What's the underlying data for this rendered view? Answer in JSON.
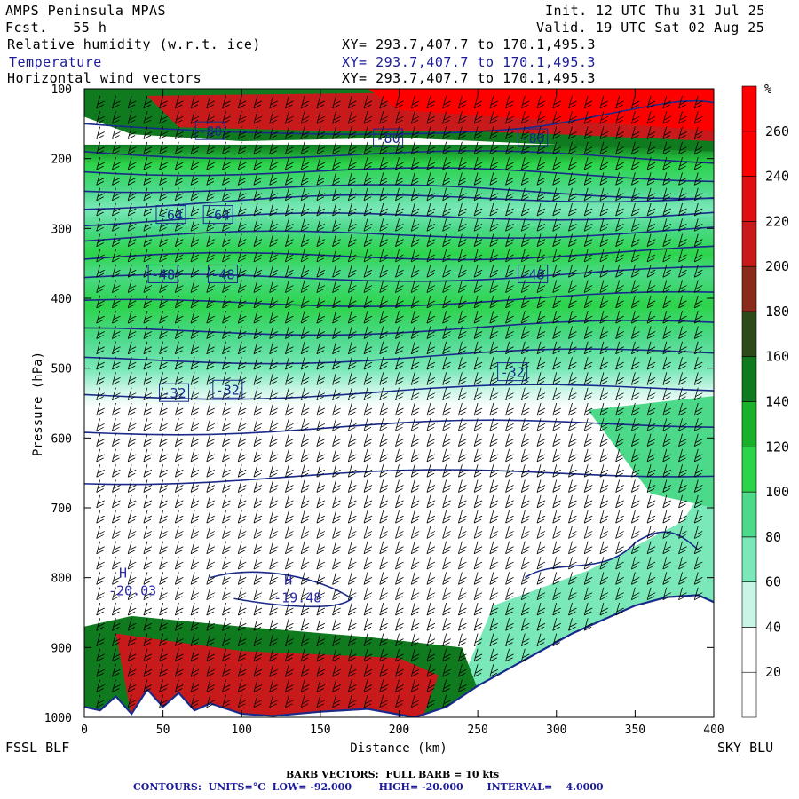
{
  "header": {
    "model": "AMPS Peninsula MPAS",
    "fcst": "Fcst.   55 h",
    "init": "Init. 12 UTC Thu 31 Jul 25",
    "valid": "Valid. 19 UTC Sat 02 Aug 25",
    "field1": "Relative humidity (w.r.t. ice)",
    "field2": "Temperature",
    "field3": "Horizontal wind vectors",
    "xy": "XY= 293.7,407.7 to 170.1,495.3"
  },
  "left_station": "FSSL_BLF",
  "right_station": "SKY_BLU",
  "footer": {
    "barb": "BARB VECTORS:  FULL BARB = 10 kts",
    "contours": "CONTOURS:  UNITS=°C  LOW= -92.000        HIGH= -20.000       INTERVAL=    4.0000"
  },
  "colors": {
    "contour": "#1a2a8a",
    "rh_scale": [
      "#ffffff",
      "#ffffff",
      "#c8f5e6",
      "#7ae8b8",
      "#4cd98a",
      "#2cd44a",
      "#19b02a",
      "#0f7a1e",
      "#2d4a1a",
      "#8a2a1a",
      "#c81a1a",
      "#e01010",
      "#ff0000",
      "#ff0000"
    ]
  },
  "chart_data": {
    "type": "heatmap",
    "xlabel": "Distance (km)",
    "ylabel": "Pressure (hPa)",
    "xlim": [
      0,
      400
    ],
    "ylim": [
      1000,
      100
    ],
    "x_ticks": [
      "0",
      "50",
      "100",
      "150",
      "200",
      "250",
      "300",
      "350",
      "400"
    ],
    "y_ticks": [
      "100",
      "200",
      "300",
      "400",
      "500",
      "600",
      "700",
      "800",
      "900",
      "1000"
    ],
    "colorbar": {
      "unit": "%",
      "ticks": [
        "20",
        "40",
        "60",
        "80",
        "100",
        "120",
        "140",
        "160",
        "180",
        "200",
        "220",
        "240",
        "260"
      ]
    },
    "temperature_contours": [
      {
        "label": "-80",
        "x": 80,
        "p": 160
      },
      {
        "label": "-80",
        "x": 193,
        "p": 170
      },
      {
        "label": "-80",
        "x": 285,
        "p": 170
      },
      {
        "label": "-64",
        "x": 55,
        "p": 280
      },
      {
        "label": "-64",
        "x": 85,
        "p": 280
      },
      {
        "label": "-48",
        "x": 50,
        "p": 365
      },
      {
        "label": "-48",
        "x": 88,
        "p": 365
      },
      {
        "label": "-48",
        "x": 285,
        "p": 365
      },
      {
        "label": "-32",
        "x": 57,
        "p": 535
      },
      {
        "label": "-32",
        "x": 91,
        "p": 530
      },
      {
        "label": "-32",
        "x": 272,
        "p": 505
      }
    ],
    "extrema": [
      {
        "mark": "H",
        "value": "-20.03",
        "x": 22,
        "p": 800
      },
      {
        "mark": "H",
        "value": "-19.48",
        "x": 127,
        "p": 810
      }
    ]
  }
}
